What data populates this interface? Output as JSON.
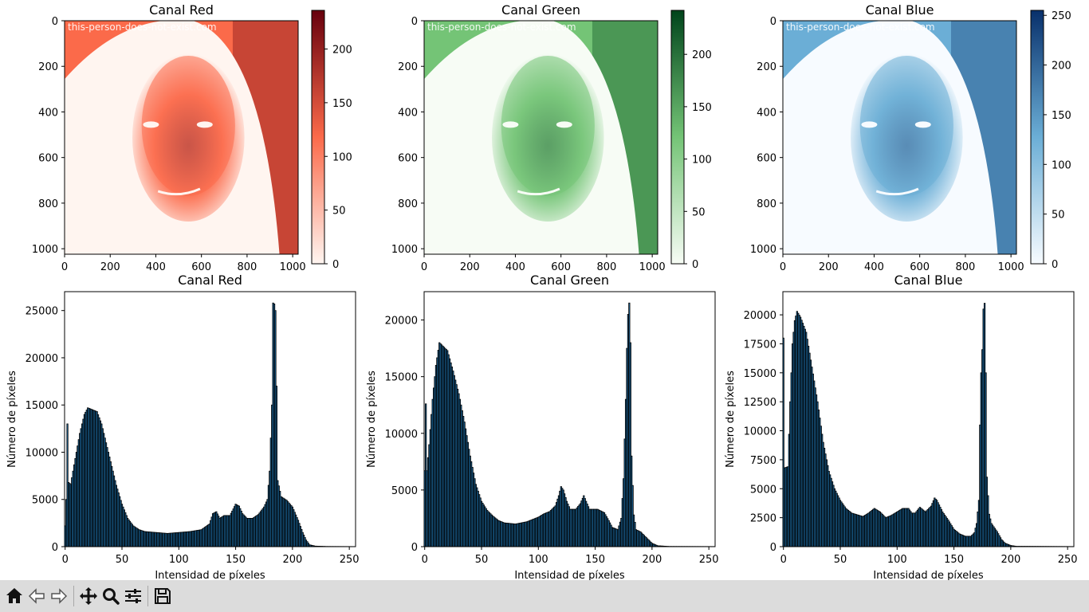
{
  "toolbar": {
    "items": [
      {
        "name": "home-icon"
      },
      {
        "name": "back-icon"
      },
      {
        "name": "forward-icon"
      },
      {
        "name": "pan-icon"
      },
      {
        "name": "zoom-icon"
      },
      {
        "name": "configure-subplots-icon"
      },
      {
        "name": "save-icon"
      }
    ]
  },
  "images": [
    {
      "title": "Canal Red",
      "cmap": "Reds",
      "watermark": "this-person-does-not-exist.com",
      "x_ticks": [
        0,
        200,
        400,
        600,
        800,
        1000
      ],
      "y_ticks": [
        0,
        200,
        400,
        600,
        800,
        1000
      ],
      "colorbar_ticks": [
        0,
        50,
        100,
        150,
        200
      ],
      "colorbar_range": [
        0,
        236
      ],
      "colors": {
        "low": "#fff5f0",
        "mid": "#fb6a4a",
        "high": "#67000d"
      }
    },
    {
      "title": "Canal Green",
      "cmap": "Greens",
      "watermark": "this-person-does-not-exist.com",
      "x_ticks": [
        0,
        200,
        400,
        600,
        800,
        1000
      ],
      "y_ticks": [
        0,
        200,
        400,
        600,
        800,
        1000
      ],
      "colorbar_ticks": [
        0,
        50,
        100,
        150,
        200
      ],
      "colorbar_range": [
        0,
        242
      ],
      "colors": {
        "low": "#f7fcf5",
        "mid": "#74c476",
        "high": "#00441b"
      }
    },
    {
      "title": "Canal Blue",
      "cmap": "Blues",
      "watermark": "this-person-does-not-exist.com",
      "x_ticks": [
        0,
        200,
        400,
        600,
        800,
        1000
      ],
      "y_ticks": [
        0,
        200,
        400,
        600,
        800,
        1000
      ],
      "colorbar_ticks": [
        0,
        50,
        100,
        150,
        200,
        250
      ],
      "colorbar_range": [
        0,
        255
      ],
      "colors": {
        "low": "#f7fbff",
        "mid": "#6baed6",
        "high": "#08306b"
      }
    }
  ],
  "chart_data": [
    {
      "type": "bar",
      "title": "Canal Red",
      "xlabel": "Intensidad de píxeles",
      "ylabel": "Número de píxeles",
      "xlim": [
        -0.5,
        255.5
      ],
      "ylim": [
        0,
        27000
      ],
      "x_ticks": [
        0,
        50,
        100,
        150,
        200,
        250
      ],
      "y_ticks": [
        0,
        5000,
        10000,
        15000,
        20000,
        25000
      ],
      "grid": false,
      "keypoints": [
        [
          0,
          2200
        ],
        [
          1,
          5000
        ],
        [
          2,
          13000
        ],
        [
          3,
          6800
        ],
        [
          5,
          6600
        ],
        [
          7,
          8000
        ],
        [
          10,
          10000
        ],
        [
          13,
          12000
        ],
        [
          17,
          14000
        ],
        [
          20,
          14700
        ],
        [
          24,
          14500
        ],
        [
          28,
          14300
        ],
        [
          32,
          13000
        ],
        [
          36,
          11000
        ],
        [
          40,
          9000
        ],
        [
          45,
          6500
        ],
        [
          50,
          4500
        ],
        [
          55,
          3000
        ],
        [
          60,
          2200
        ],
        [
          65,
          1800
        ],
        [
          70,
          1600
        ],
        [
          80,
          1500
        ],
        [
          90,
          1400
        ],
        [
          100,
          1500
        ],
        [
          110,
          1600
        ],
        [
          120,
          1800
        ],
        [
          127,
          2400
        ],
        [
          130,
          3500
        ],
        [
          133,
          3700
        ],
        [
          136,
          3000
        ],
        [
          140,
          3300
        ],
        [
          145,
          3300
        ],
        [
          148,
          4000
        ],
        [
          150,
          4500
        ],
        [
          153,
          4300
        ],
        [
          156,
          3500
        ],
        [
          160,
          3000
        ],
        [
          165,
          3000
        ],
        [
          170,
          3400
        ],
        [
          175,
          4200
        ],
        [
          178,
          5000
        ],
        [
          180,
          8000
        ],
        [
          182,
          15000
        ],
        [
          183,
          25800
        ],
        [
          184,
          25700
        ],
        [
          185,
          25000
        ],
        [
          186,
          17000
        ],
        [
          187,
          7000
        ],
        [
          190,
          5300
        ],
        [
          195,
          4900
        ],
        [
          200,
          4200
        ],
        [
          205,
          2800
        ],
        [
          209,
          1500
        ],
        [
          212,
          700
        ],
        [
          215,
          200
        ],
        [
          220,
          60
        ],
        [
          230,
          20
        ],
        [
          255,
          10
        ]
      ]
    },
    {
      "type": "bar",
      "title": "Canal Green",
      "xlabel": "Intensidad de píxeles",
      "ylabel": "Número de píxeles",
      "xlim": [
        -0.5,
        255.5
      ],
      "ylim": [
        0,
        22500
      ],
      "x_ticks": [
        0,
        50,
        100,
        150,
        200,
        250
      ],
      "y_ticks": [
        0,
        5000,
        10000,
        15000,
        20000
      ],
      "grid": false,
      "keypoints": [
        [
          0,
          6700
        ],
        [
          1,
          12600
        ],
        [
          2,
          6700
        ],
        [
          4,
          9000
        ],
        [
          7,
          13000
        ],
        [
          10,
          16000
        ],
        [
          13,
          18000
        ],
        [
          16,
          17700
        ],
        [
          20,
          17300
        ],
        [
          25,
          15500
        ],
        [
          30,
          13500
        ],
        [
          35,
          11000
        ],
        [
          40,
          8000
        ],
        [
          45,
          5500
        ],
        [
          50,
          4000
        ],
        [
          55,
          3200
        ],
        [
          60,
          2700
        ],
        [
          65,
          2300
        ],
        [
          70,
          2100
        ],
        [
          80,
          2000
        ],
        [
          90,
          2200
        ],
        [
          100,
          2600
        ],
        [
          105,
          2900
        ],
        [
          110,
          3100
        ],
        [
          115,
          3600
        ],
        [
          118,
          4500
        ],
        [
          120,
          5300
        ],
        [
          122,
          5000
        ],
        [
          125,
          4000
        ],
        [
          128,
          3300
        ],
        [
          133,
          3300
        ],
        [
          137,
          3800
        ],
        [
          140,
          4500
        ],
        [
          142,
          4000
        ],
        [
          145,
          3300
        ],
        [
          152,
          3300
        ],
        [
          158,
          3000
        ],
        [
          162,
          2300
        ],
        [
          165,
          1700
        ],
        [
          170,
          1500
        ],
        [
          173,
          2500
        ],
        [
          175,
          6000
        ],
        [
          177,
          13000
        ],
        [
          178,
          17500
        ],
        [
          179,
          20500
        ],
        [
          180,
          21500
        ],
        [
          181,
          18000
        ],
        [
          182,
          8000
        ],
        [
          184,
          2800
        ],
        [
          186,
          1500
        ],
        [
          190,
          1300
        ],
        [
          195,
          800
        ],
        [
          200,
          300
        ],
        [
          205,
          80
        ],
        [
          215,
          20
        ],
        [
          255,
          10
        ]
      ]
    },
    {
      "type": "bar",
      "title": "Canal Blue",
      "xlabel": "Intensidad de píxeles",
      "ylabel": "Número de píxeles",
      "xlim": [
        -0.5,
        255.5
      ],
      "ylim": [
        0,
        22000
      ],
      "x_ticks": [
        0,
        50,
        100,
        150,
        200,
        250
      ],
      "y_ticks": [
        0,
        2500,
        5000,
        7500,
        10000,
        12500,
        15000,
        17500,
        20000
      ],
      "grid": false,
      "keypoints": [
        [
          0,
          18000
        ],
        [
          1,
          6800
        ],
        [
          4,
          6900
        ],
        [
          6,
          12500
        ],
        [
          8,
          17500
        ],
        [
          10,
          19500
        ],
        [
          12,
          20300
        ],
        [
          15,
          19800
        ],
        [
          20,
          18500
        ],
        [
          25,
          15500
        ],
        [
          30,
          12500
        ],
        [
          35,
          9000
        ],
        [
          40,
          6500
        ],
        [
          45,
          5000
        ],
        [
          50,
          4000
        ],
        [
          55,
          3300
        ],
        [
          60,
          2900
        ],
        [
          70,
          2600
        ],
        [
          75,
          2900
        ],
        [
          80,
          3300
        ],
        [
          85,
          3000
        ],
        [
          90,
          2500
        ],
        [
          95,
          2700
        ],
        [
          100,
          3000
        ],
        [
          105,
          3300
        ],
        [
          110,
          3300
        ],
        [
          113,
          2900
        ],
        [
          116,
          2900
        ],
        [
          120,
          3400
        ],
        [
          125,
          3000
        ],
        [
          130,
          3500
        ],
        [
          133,
          4200
        ],
        [
          135,
          4000
        ],
        [
          140,
          3000
        ],
        [
          145,
          2300
        ],
        [
          150,
          1500
        ],
        [
          155,
          1100
        ],
        [
          160,
          900
        ],
        [
          165,
          900
        ],
        [
          168,
          1200
        ],
        [
          170,
          2000
        ],
        [
          172,
          4000
        ],
        [
          173,
          10500
        ],
        [
          174,
          15000
        ],
        [
          175,
          17000
        ],
        [
          176,
          20500
        ],
        [
          177,
          21000
        ],
        [
          178,
          15000
        ],
        [
          179,
          6000
        ],
        [
          181,
          2800
        ],
        [
          183,
          2000
        ],
        [
          188,
          1300
        ],
        [
          192,
          600
        ],
        [
          195,
          300
        ],
        [
          200,
          100
        ],
        [
          205,
          30
        ],
        [
          255,
          10
        ]
      ]
    }
  ]
}
